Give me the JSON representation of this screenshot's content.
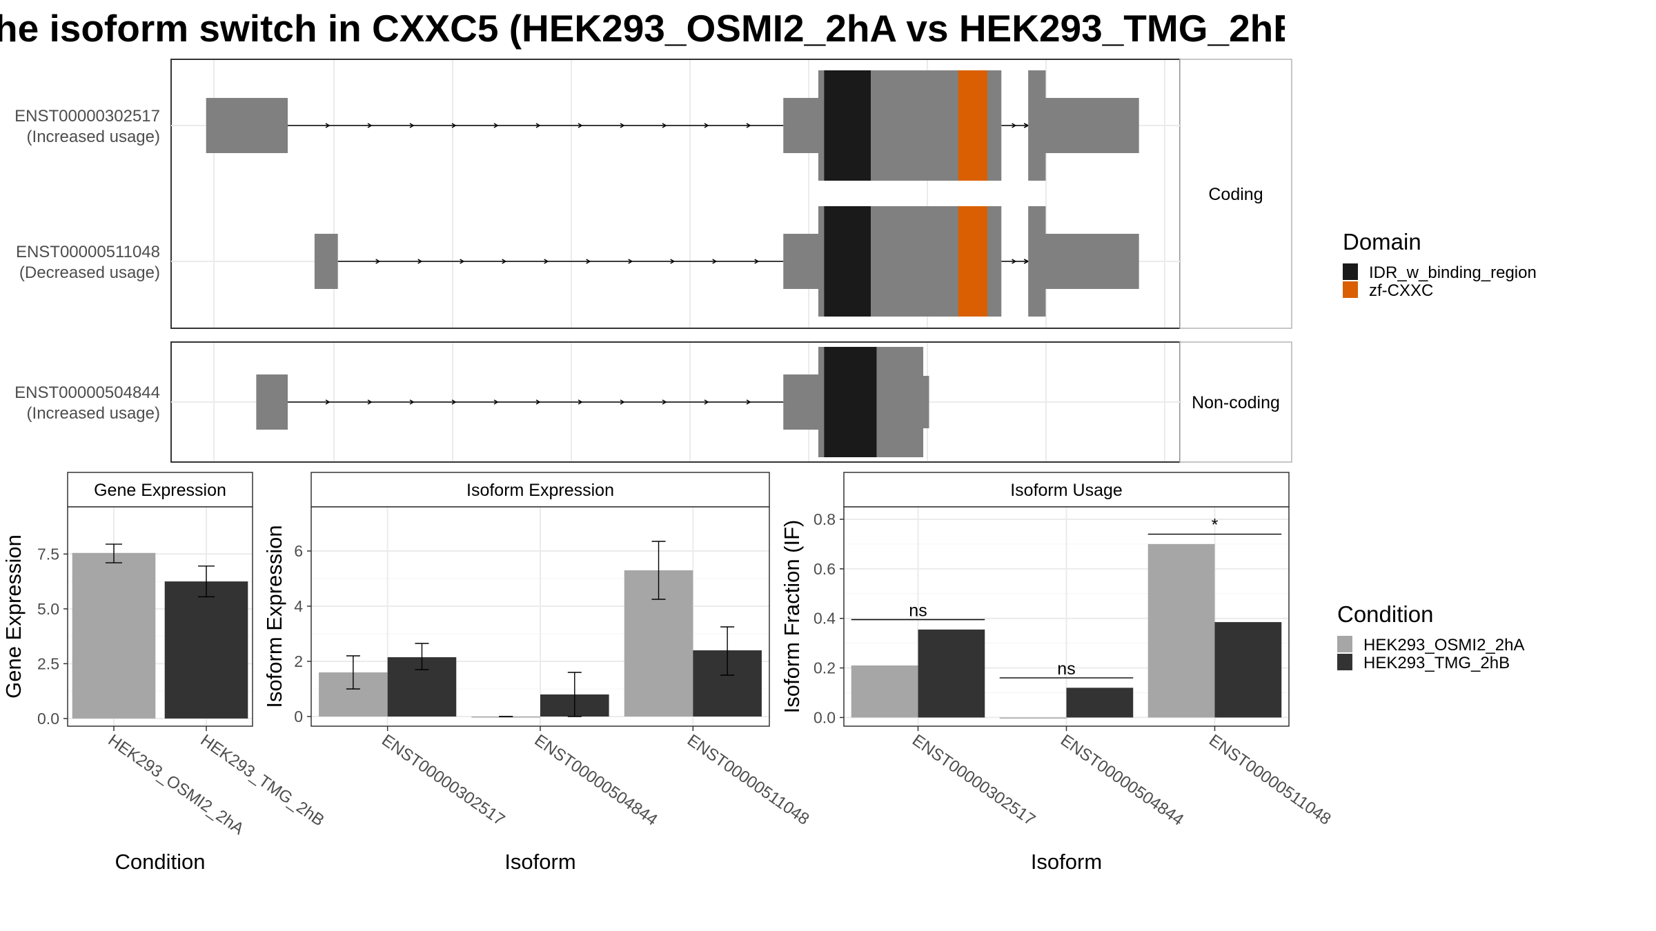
{
  "title": "he isoform switch in CXXC5 (HEK293_OSMI2_2hA vs HEK293_TMG_2hB",
  "colors": {
    "exon": "#808080",
    "intron": "#000000",
    "domain_idr": "#1a1a1a",
    "domain_zf": "#d95f02",
    "cond_a": "#a6a6a6",
    "cond_b": "#333333",
    "grid": "#ebebeb",
    "strip_bg": "#ffffff",
    "panel_border": "#333333"
  },
  "structure": {
    "facets": [
      "Coding",
      "Non-coding"
    ],
    "transcripts": [
      {
        "id": "ENST00000302517",
        "usage": "(Increased usage)",
        "facet": "Coding",
        "exons": [
          [
            30,
            100
          ],
          [
            525,
            560
          ],
          [
            735,
            750
          ]
        ],
        "domains": [
          {
            "name": "IDR_w_binding_region",
            "range": [
              560,
              600
            ]
          },
          {
            "name": "zf-CXXC",
            "range": [
              675,
              700
            ]
          }
        ],
        "gray_blocks": [
          [
            555,
            712
          ],
          [
            750,
            830
          ]
        ]
      },
      {
        "id": "ENST00000511048",
        "usage": "(Decreased usage)",
        "facet": "Coding",
        "exons": [
          [
            123,
            143
          ],
          [
            525,
            560
          ],
          [
            735,
            750
          ]
        ],
        "domains": [
          {
            "name": "IDR_w_binding_region",
            "range": [
              560,
              600
            ]
          },
          {
            "name": "zf-CXXC",
            "range": [
              675,
              700
            ]
          }
        ],
        "gray_blocks": [
          [
            555,
            712
          ],
          [
            750,
            830
          ]
        ]
      },
      {
        "id": "ENST00000504844",
        "usage": "(Increased usage)",
        "facet": "Non-coding",
        "exons": [
          [
            73,
            100
          ],
          [
            525,
            560
          ]
        ],
        "domains": [
          {
            "name": "IDR_w_binding_region",
            "range": [
              560,
              605
            ]
          }
        ],
        "gray_blocks": [
          [
            555,
            645
          ]
        ]
      }
    ]
  },
  "legend_domain": {
    "title": "Domain",
    "items": [
      {
        "label": "IDR_w_binding_region",
        "color": "#1a1a1a"
      },
      {
        "label": "zf-CXXC",
        "color": "#d95f02"
      }
    ]
  },
  "legend_condition": {
    "title": "Condition",
    "items": [
      {
        "label": "HEK293_OSMI2_2hA",
        "color": "#a6a6a6"
      },
      {
        "label": "HEK293_TMG_2hB",
        "color": "#333333"
      }
    ]
  },
  "chart_data": [
    {
      "type": "bar",
      "title": "Gene Expression",
      "xlabel": "Condition",
      "ylabel": "Gene Expression",
      "categories": [
        "HEK293_OSMI2_2hA",
        "HEK293_TMG_2hB"
      ],
      "values": [
        7.55,
        6.25
      ],
      "errors": [
        [
          7.1,
          7.95
        ],
        [
          5.55,
          6.95
        ]
      ],
      "ylim": [
        -0.35,
        9.65
      ],
      "yticks": [
        0.0,
        2.5,
        5.0,
        7.5
      ],
      "ytick_labels": [
        "0.0",
        "2.5",
        "5.0",
        "7.5"
      ],
      "grid": true
    },
    {
      "type": "bar",
      "title": "Isoform Expression",
      "xlabel": "Isoform",
      "ylabel": "Isoform Expression",
      "categories": [
        "ENST00000302517",
        "ENST00000504844",
        "ENST00000511048"
      ],
      "series": [
        {
          "name": "HEK293_OSMI2_2hA",
          "values": [
            1.6,
            0.0,
            5.3
          ],
          "errors": [
            [
              1.0,
              2.2
            ],
            [
              0.0,
              0.0
            ],
            [
              4.25,
              6.35
            ]
          ]
        },
        {
          "name": "HEK293_TMG_2hB",
          "values": [
            2.15,
            0.8,
            2.4
          ],
          "errors": [
            [
              1.7,
              2.65
            ],
            [
              0.0,
              1.6
            ],
            [
              1.5,
              3.25
            ]
          ]
        }
      ],
      "ylim": [
        -0.35,
        7.6
      ],
      "yticks": [
        0,
        2,
        4,
        6
      ],
      "ytick_labels": [
        "0",
        "2",
        "4",
        "6"
      ],
      "grid": true
    },
    {
      "type": "bar",
      "title": "Isoform Usage",
      "xlabel": "Isoform",
      "ylabel": "Isoform Fraction (IF)",
      "categories": [
        "ENST00000302517",
        "ENST00000504844",
        "ENST00000511048"
      ],
      "series": [
        {
          "name": "HEK293_OSMI2_2hA",
          "values": [
            0.21,
            0.0,
            0.7
          ]
        },
        {
          "name": "HEK293_TMG_2hB",
          "values": [
            0.355,
            0.12,
            0.385
          ]
        }
      ],
      "significance": [
        "ns",
        "ns",
        "*"
      ],
      "ylim": [
        -0.035,
        0.85
      ],
      "yticks": [
        0.0,
        0.2,
        0.4,
        0.6,
        0.8
      ],
      "ytick_labels": [
        "0.0",
        "0.2",
        "0.4",
        "0.6",
        "0.8"
      ],
      "grid": true
    }
  ]
}
